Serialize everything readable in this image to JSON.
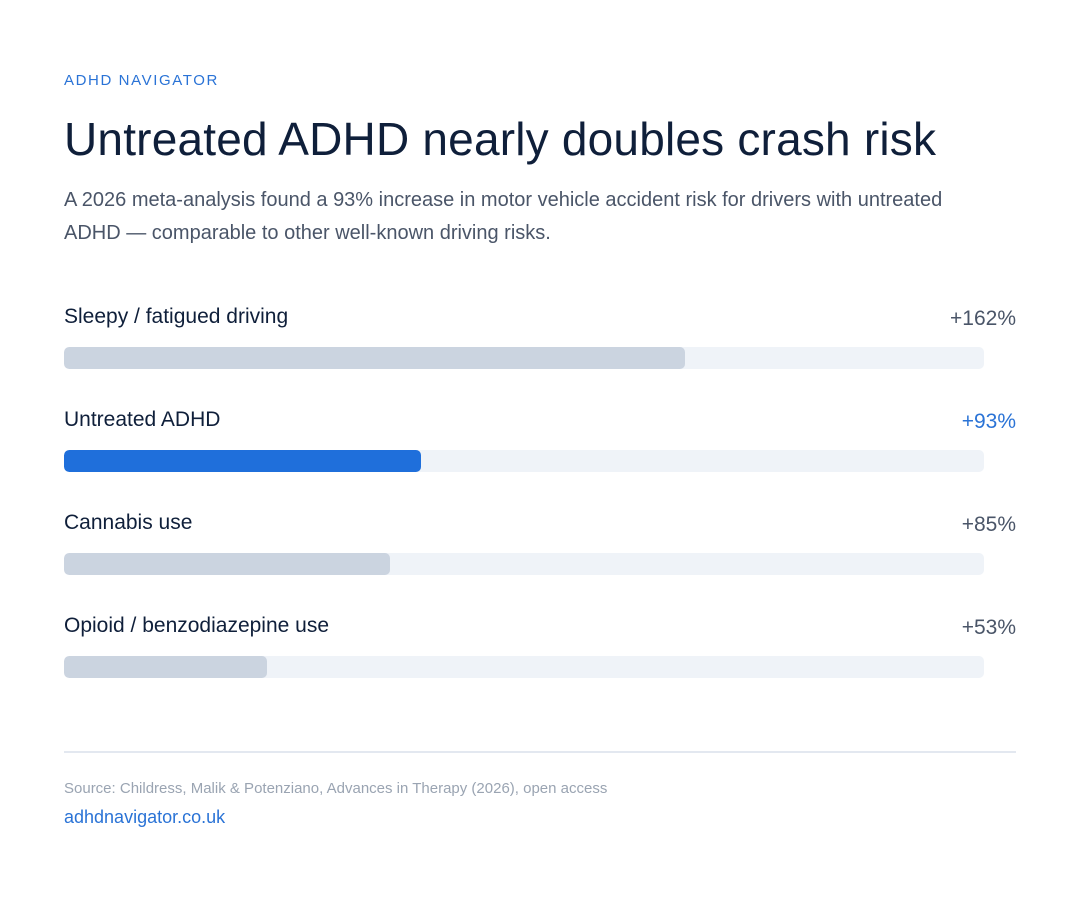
{
  "header": {
    "brand": "ADHD NAVIGATOR",
    "title": "Untreated ADHD nearly doubles crash risk",
    "subtitle": "A 2026 meta-analysis found a 93% increase in motor vehicle accident risk for drivers with untreated ADHD — comparable to other well-known driving risks."
  },
  "chart_data": {
    "type": "bar",
    "orientation": "horizontal",
    "title": "",
    "xlabel": "",
    "ylabel": "",
    "xlim": [
      0,
      240
    ],
    "grid": false,
    "categories": [
      "Sleepy / fatigued driving",
      "Untreated ADHD",
      "Cannabis use",
      "Opioid / benzodiazepine use"
    ],
    "values": [
      162,
      93,
      85,
      53
    ],
    "value_labels": [
      "+162%",
      "+93%",
      "+85%",
      "+53%"
    ],
    "highlighted": [
      false,
      true,
      false,
      false
    ],
    "colors": {
      "default_bar": "#cbd4e0",
      "highlight_bar": "#1f6fdb",
      "track": "#eff3f8",
      "highlight_text": "#2a73d6"
    }
  },
  "footer": {
    "source": "Source: Childress, Malik & Potenziano, Advances in Therapy (2026), open access",
    "link": "adhdnavigator.co.uk"
  }
}
